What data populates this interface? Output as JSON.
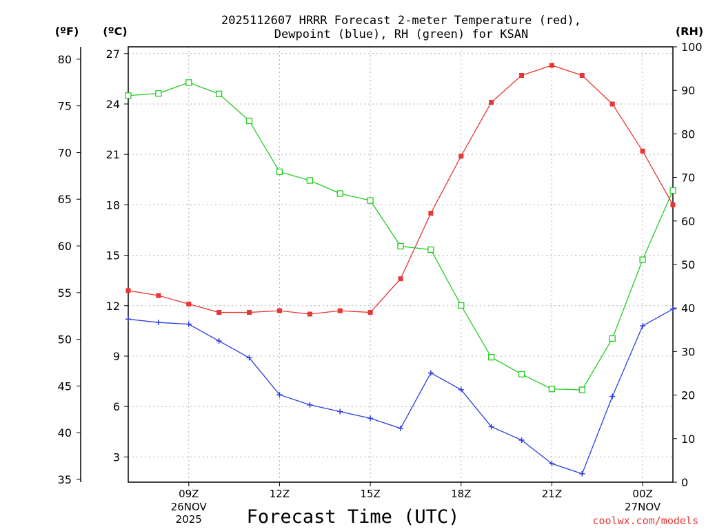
{
  "chart_data": {
    "type": "line",
    "title_line1": "2025112607 HRRR Forecast 2-meter Temperature (red),",
    "title_line2": "Dewpoint (blue), RH (green) for KSAN",
    "unit_f": "(ºF)",
    "unit_c": "(ºC)",
    "unit_rh": "(RH)",
    "xlabel": "Forecast Time (UTC)",
    "credit": "coolwx.com/models",
    "x_hours": [
      7,
      8,
      9,
      10,
      11,
      12,
      13,
      14,
      15,
      16,
      17,
      18,
      19,
      20,
      21,
      22,
      23,
      24,
      25
    ],
    "x_range": [
      7,
      25
    ],
    "x_ticks": [
      {
        "hour": 9,
        "label": "09Z",
        "sub1": "26NOV",
        "sub2": "2025"
      },
      {
        "hour": 12,
        "label": "12Z",
        "sub1": "",
        "sub2": ""
      },
      {
        "hour": 15,
        "label": "15Z",
        "sub1": "",
        "sub2": ""
      },
      {
        "hour": 18,
        "label": "18Z",
        "sub1": "",
        "sub2": ""
      },
      {
        "hour": 21,
        "label": "21Z",
        "sub1": "",
        "sub2": ""
      },
      {
        "hour": 24,
        "label": "00Z",
        "sub1": "27NOV",
        "sub2": ""
      }
    ],
    "c_axis": {
      "range": [
        1.5,
        27.4
      ],
      "ticks": [
        "3",
        "6",
        "9",
        "12",
        "15",
        "18",
        "21",
        "24",
        "27"
      ]
    },
    "f_axis": {
      "ticks": [
        "35",
        "40",
        "45",
        "50",
        "55",
        "60",
        "65",
        "70",
        "75",
        "80"
      ]
    },
    "rh_axis": {
      "range": [
        0,
        100
      ],
      "ticks": [
        "0",
        "10",
        "20",
        "30",
        "40",
        "50",
        "60",
        "70",
        "80",
        "90",
        "100"
      ]
    },
    "series": [
      {
        "name": "Temperature",
        "unit": "C",
        "color": "#e83535",
        "values": [
          12.9,
          12.6,
          12.1,
          11.6,
          11.6,
          11.7,
          11.5,
          11.7,
          11.6,
          13.6,
          17.5,
          20.9,
          24.1,
          25.7,
          26.3,
          25.7,
          24.0,
          21.2,
          18.0
        ]
      },
      {
        "name": "Dewpoint",
        "unit": "C",
        "color": "#2c3ee0",
        "values": [
          11.2,
          11.0,
          10.9,
          9.9,
          8.9,
          6.7,
          6.1,
          5.7,
          5.3,
          4.7,
          8.0,
          7.0,
          4.8,
          4.0,
          2.6,
          2.0,
          6.6,
          10.8,
          11.8
        ]
      },
      {
        "name": "RH",
        "unit": "%",
        "color": "#22cc22",
        "values": [
          88.8,
          89.3,
          91.8,
          89.2,
          83.0,
          71.3,
          69.3,
          66.3,
          64.7,
          54.2,
          53.4,
          40.6,
          28.7,
          24.8,
          21.4,
          21.2,
          33.0,
          51.1,
          67.0
        ]
      }
    ]
  }
}
